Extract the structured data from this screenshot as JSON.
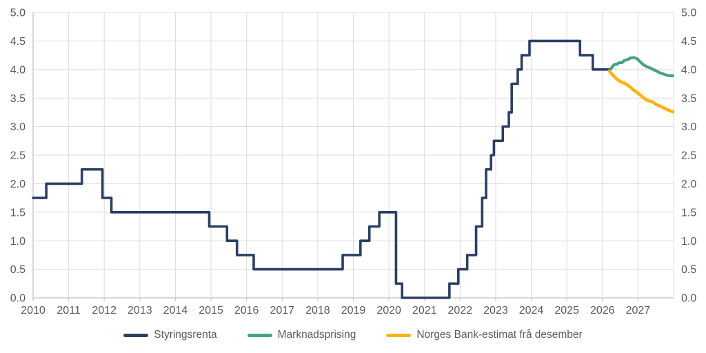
{
  "chart_data": {
    "type": "line",
    "title": "",
    "xlabel": "",
    "ylabel": "",
    "x_range": [
      2010,
      2028
    ],
    "y_range": [
      0.0,
      5.0
    ],
    "grid": true,
    "legend_position": "bottom",
    "y_tick_labels": [
      "0.0",
      "0.5",
      "1.0",
      "1.5",
      "2.0",
      "2.5",
      "3.0",
      "3.5",
      "4.0",
      "4.5",
      "5.0"
    ],
    "x_tick_labels": [
      "2010",
      "2011",
      "2012",
      "2013",
      "2014",
      "2015",
      "2016",
      "2017",
      "2018",
      "2019",
      "2020",
      "2021",
      "2022",
      "2023",
      "2024",
      "2025",
      "2026",
      "2027"
    ],
    "series": [
      {
        "name": "Styringsrenta",
        "color": "#2B3F63",
        "stroke_width": 3.6,
        "style": "step",
        "points": [
          [
            2010.0,
            1.75
          ],
          [
            2010.37,
            2.0
          ],
          [
            2011.37,
            2.25
          ],
          [
            2011.95,
            1.75
          ],
          [
            2012.2,
            1.5
          ],
          [
            2014.95,
            1.25
          ],
          [
            2015.45,
            1.0
          ],
          [
            2015.73,
            0.75
          ],
          [
            2016.2,
            0.5
          ],
          [
            2018.7,
            0.75
          ],
          [
            2019.2,
            1.0
          ],
          [
            2019.45,
            1.25
          ],
          [
            2019.73,
            1.5
          ],
          [
            2020.2,
            0.25
          ],
          [
            2020.37,
            0.0
          ],
          [
            2021.7,
            0.25
          ],
          [
            2021.95,
            0.5
          ],
          [
            2022.2,
            0.75
          ],
          [
            2022.45,
            1.25
          ],
          [
            2022.62,
            1.75
          ],
          [
            2022.73,
            2.25
          ],
          [
            2022.87,
            2.5
          ],
          [
            2022.95,
            2.75
          ],
          [
            2023.2,
            3.0
          ],
          [
            2023.37,
            3.25
          ],
          [
            2023.45,
            3.75
          ],
          [
            2023.62,
            4.0
          ],
          [
            2023.73,
            4.25
          ],
          [
            2023.95,
            4.5
          ],
          [
            2025.37,
            4.25
          ],
          [
            2025.73,
            4.0
          ],
          [
            2026.2,
            4.0
          ]
        ]
      },
      {
        "name": "Marknadsprising",
        "color": "#45A287",
        "stroke_width": 4.2,
        "style": "line",
        "points": [
          [
            2026.2,
            3.98
          ],
          [
            2026.28,
            4.05
          ],
          [
            2026.34,
            4.09
          ],
          [
            2026.4,
            4.09
          ],
          [
            2026.47,
            4.12
          ],
          [
            2026.55,
            4.12
          ],
          [
            2026.62,
            4.16
          ],
          [
            2026.7,
            4.17
          ],
          [
            2026.78,
            4.2
          ],
          [
            2026.88,
            4.21
          ],
          [
            2026.97,
            4.19
          ],
          [
            2027.07,
            4.13
          ],
          [
            2027.16,
            4.08
          ],
          [
            2027.24,
            4.05
          ],
          [
            2027.33,
            4.03
          ],
          [
            2027.43,
            4.0
          ],
          [
            2027.53,
            3.97
          ],
          [
            2027.62,
            3.94
          ],
          [
            2027.72,
            3.92
          ],
          [
            2027.81,
            3.9
          ],
          [
            2027.91,
            3.89
          ],
          [
            2027.98,
            3.89
          ]
        ]
      },
      {
        "name": "Norges Bank-estimat frå desember",
        "color": "#FBB414",
        "stroke_width": 4.6,
        "style": "line",
        "points": [
          [
            2026.2,
            3.97
          ],
          [
            2026.28,
            3.91
          ],
          [
            2026.36,
            3.86
          ],
          [
            2026.45,
            3.81
          ],
          [
            2026.53,
            3.78
          ],
          [
            2026.62,
            3.76
          ],
          [
            2026.7,
            3.73
          ],
          [
            2026.78,
            3.69
          ],
          [
            2026.88,
            3.64
          ],
          [
            2026.97,
            3.6
          ],
          [
            2027.07,
            3.55
          ],
          [
            2027.16,
            3.5
          ],
          [
            2027.26,
            3.46
          ],
          [
            2027.36,
            3.44
          ],
          [
            2027.42,
            3.43
          ],
          [
            2027.5,
            3.39
          ],
          [
            2027.58,
            3.37
          ],
          [
            2027.68,
            3.34
          ],
          [
            2027.78,
            3.31
          ],
          [
            2027.88,
            3.28
          ],
          [
            2027.98,
            3.26
          ]
        ]
      }
    ]
  },
  "legend": {
    "items": [
      {
        "label": "Styringsrenta"
      },
      {
        "label": "Marknadsprising"
      },
      {
        "label": "Norges Bank-estimat frå desember"
      }
    ]
  },
  "style": {
    "grid_color": "#DCDCDC",
    "axis_color": "#C0C0C0",
    "tick_text_color": "#595959"
  }
}
